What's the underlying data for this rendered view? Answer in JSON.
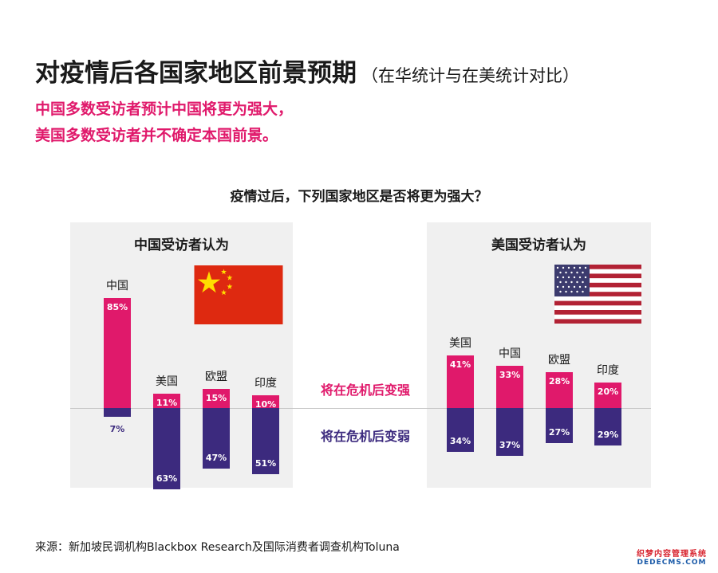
{
  "header": {
    "title": "对疫情后各国家地区前景预期",
    "title_note": "（在华统计与在美统计对比）",
    "headline_1": "中国多数受访者预计中国将更为强大，",
    "headline_2": "美国多数受访者并不确定本国前景。"
  },
  "legend": {
    "stronger": "将在危机后变强",
    "weaker": "将在危机后变弱"
  },
  "source": "来源：新加坡民调机构Blackbox Research及国际消费者调查机构Toluna",
  "watermark": {
    "line1": "织梦内容管理系统",
    "line2": "DEDECMS.COM"
  },
  "colors": {
    "stronger": "#e0196b",
    "weaker": "#3c2a7e",
    "panel_bg": "#f0f0f0",
    "headline": "#e0196b"
  },
  "icons": {
    "china_flag": "china-flag-icon",
    "us_flag": "us-flag-icon"
  },
  "chart_data": {
    "type": "bar",
    "title": "疫情过后，下列国家地区是否将更为强大？",
    "value_unit": "%",
    "panels": [
      {
        "title": "中国受访者认为",
        "categories": [
          "中国",
          "美国",
          "欧盟",
          "印度"
        ],
        "series": [
          {
            "name": "将在危机后变强",
            "values": [
              85,
              11,
              15,
              10
            ]
          },
          {
            "name": "将在危机后变弱",
            "values": [
              7,
              63,
              47,
              51
            ]
          }
        ]
      },
      {
        "title": "美国受访者认为",
        "categories": [
          "美国",
          "中国",
          "欧盟",
          "印度"
        ],
        "series": [
          {
            "name": "将在危机后变强",
            "values": [
              41,
              33,
              28,
              20
            ]
          },
          {
            "name": "将在危机后变弱",
            "values": [
              34,
              37,
              27,
              29
            ]
          }
        ]
      }
    ]
  }
}
